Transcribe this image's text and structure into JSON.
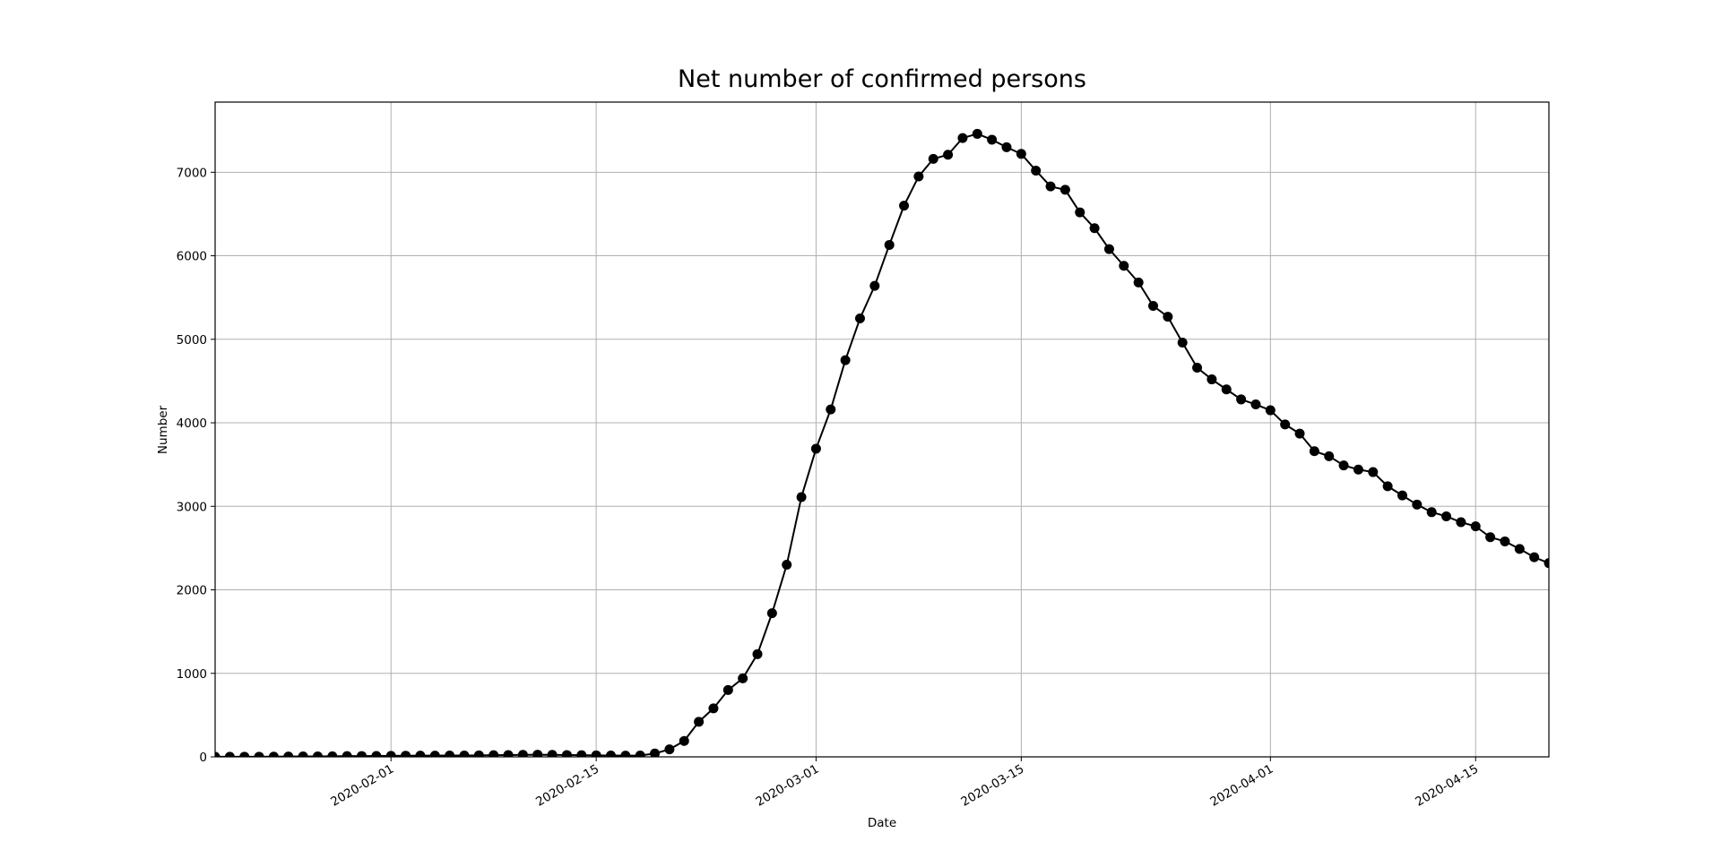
{
  "chart_data": {
    "type": "line",
    "title": "Net number of confirmed persons",
    "x_label": "Date",
    "y_label": "Number",
    "x": [
      "2020-01-20",
      "2020-01-21",
      "2020-01-22",
      "2020-01-23",
      "2020-01-24",
      "2020-01-25",
      "2020-01-26",
      "2020-01-27",
      "2020-01-28",
      "2020-01-29",
      "2020-01-30",
      "2020-01-31",
      "2020-02-01",
      "2020-02-02",
      "2020-02-03",
      "2020-02-04",
      "2020-02-05",
      "2020-02-06",
      "2020-02-07",
      "2020-02-08",
      "2020-02-09",
      "2020-02-10",
      "2020-02-11",
      "2020-02-12",
      "2020-02-13",
      "2020-02-14",
      "2020-02-15",
      "2020-02-16",
      "2020-02-17",
      "2020-02-18",
      "2020-02-19",
      "2020-02-20",
      "2020-02-21",
      "2020-02-22",
      "2020-02-23",
      "2020-02-24",
      "2020-02-25",
      "2020-02-26",
      "2020-02-27",
      "2020-02-28",
      "2020-02-29",
      "2020-03-01",
      "2020-03-02",
      "2020-03-03",
      "2020-03-04",
      "2020-03-05",
      "2020-03-06",
      "2020-03-07",
      "2020-03-08",
      "2020-03-09",
      "2020-03-10",
      "2020-03-11",
      "2020-03-12",
      "2020-03-13",
      "2020-03-14",
      "2020-03-15",
      "2020-03-16",
      "2020-03-17",
      "2020-03-18",
      "2020-03-19",
      "2020-03-20",
      "2020-03-21",
      "2020-03-22",
      "2020-03-23",
      "2020-03-24",
      "2020-03-25",
      "2020-03-26",
      "2020-03-27",
      "2020-03-28",
      "2020-03-29",
      "2020-03-30",
      "2020-03-31",
      "2020-04-01",
      "2020-04-02",
      "2020-04-03",
      "2020-04-04",
      "2020-04-05",
      "2020-04-06",
      "2020-04-07",
      "2020-04-08",
      "2020-04-09",
      "2020-04-10",
      "2020-04-11",
      "2020-04-12",
      "2020-04-13",
      "2020-04-14",
      "2020-04-15",
      "2020-04-16",
      "2020-04-17",
      "2020-04-18",
      "2020-04-19",
      "2020-04-20"
    ],
    "series": [
      {
        "name": "Net number of confirmed persons",
        "color": "#000000",
        "values": [
          1,
          1,
          2,
          2,
          3,
          4,
          5,
          6,
          7,
          9,
          10,
          11,
          12,
          14,
          15,
          15,
          16,
          16,
          18,
          20,
          22,
          24,
          26,
          24,
          22,
          20,
          18,
          16,
          15,
          16,
          40,
          90,
          190,
          420,
          580,
          800,
          940,
          1230,
          1720,
          2300,
          3110,
          3690,
          4160,
          4750,
          5250,
          5640,
          6130,
          6600,
          6950,
          7160,
          7210,
          7410,
          7460,
          7390,
          7300,
          7220,
          7020,
          6830,
          6790,
          6520,
          6330,
          6080,
          5880,
          5680,
          5400,
          5270,
          4960,
          4660,
          4520,
          4400,
          4280,
          4220,
          4150,
          3980,
          3870,
          3660,
          3600,
          3490,
          3440,
          3410,
          3240,
          3130,
          3020,
          2930,
          2880,
          2810,
          2760,
          2630,
          2580,
          2490,
          2390,
          2320
        ]
      }
    ],
    "xlim": [
      "2020-01-20",
      "2020-04-20"
    ],
    "xticks": [
      "2020-02-01",
      "2020-02-15",
      "2020-03-01",
      "2020-03-15",
      "2020-04-01",
      "2020-04-15"
    ],
    "ylim": [
      0,
      7840
    ],
    "yticks": [
      0,
      1000,
      2000,
      3000,
      4000,
      5000,
      6000,
      7000
    ],
    "grid": true,
    "marker": "o"
  }
}
